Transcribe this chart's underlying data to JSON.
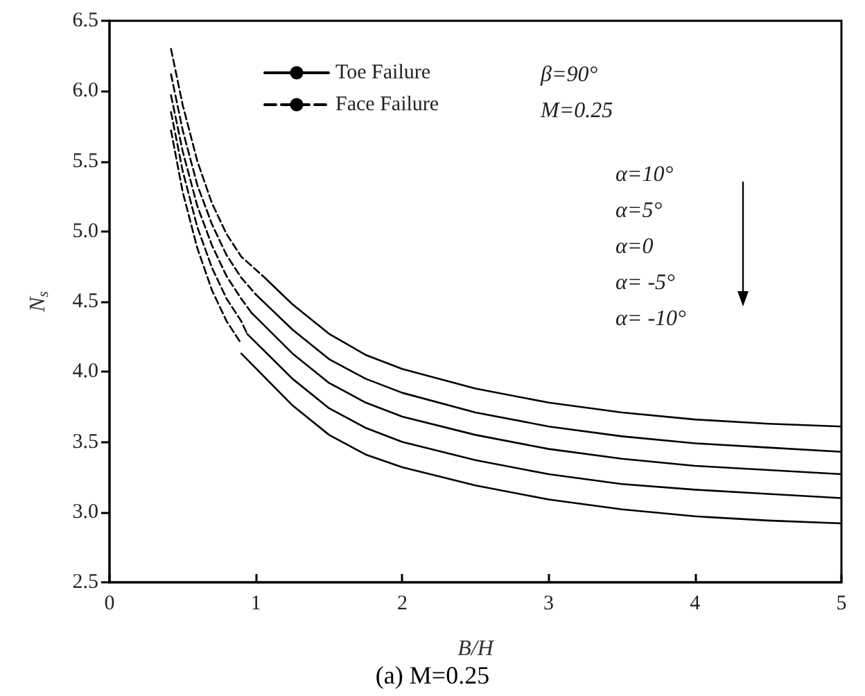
{
  "chart_data": {
    "type": "line",
    "title": "(a) M=0.25",
    "xlabel": "B/H",
    "ylabel": "N$_{s}$",
    "annotations": [
      "β=90°",
      "M=0.25",
      "α=10°",
      "α=5°",
      "α=0",
      "α= -5°",
      "α= -10°"
    ],
    "legend": "top",
    "grid": false,
    "marker": "none",
    "xlim": [
      0,
      5
    ],
    "xticks": [
      0,
      1,
      2,
      3,
      4,
      5
    ],
    "ylim": [
      2.5,
      6.5
    ],
    "yticks": [
      2.5,
      {
        "value": 3,
        "label": "3.0"
      },
      3.5,
      {
        "value": 4,
        "label": "4.0"
      },
      4.5,
      {
        "value": 5,
        "label": "5.0"
      },
      5.5,
      {
        "value": 6,
        "label": "6.0"
      },
      6.5
    ],
    "series": [
      {
        "name": "Toe Failure",
        "color": "#000000",
        "line_style": "solid",
        "x": [
          1.05,
          1.25,
          1.5,
          1.75,
          2,
          2.5,
          3,
          3.5,
          4,
          4.5,
          5
        ],
        "values": [
          4.68,
          4.48,
          4.27,
          4.12,
          4.02,
          3.88,
          3.78,
          3.71,
          3.66,
          3.63,
          3.61
        ]
      },
      {
        "name": "Face Failure",
        "color": "#000000",
        "line_style": "dashed",
        "x": [
          0.42,
          0.5,
          0.6,
          0.7,
          0.8,
          0.9,
          1.05
        ],
        "values": [
          6.3,
          5.9,
          5.5,
          5.2,
          4.98,
          4.82,
          4.68
        ]
      },
      {
        "color": "#000000",
        "line_style": "solid",
        "x": [
          1.0,
          1.25,
          1.5,
          1.75,
          2,
          2.5,
          3,
          3.5,
          4,
          4.5,
          5
        ],
        "values": [
          4.55,
          4.3,
          4.09,
          3.95,
          3.85,
          3.71,
          3.61,
          3.54,
          3.49,
          3.46,
          3.43
        ]
      },
      {
        "color": "#000000",
        "line_style": "dashed",
        "x": [
          0.42,
          0.5,
          0.6,
          0.7,
          0.8,
          0.9,
          1.0
        ],
        "values": [
          6.12,
          5.72,
          5.33,
          5.05,
          4.83,
          4.67,
          4.55
        ]
      },
      {
        "color": "#000000",
        "line_style": "solid",
        "x": [
          0.97,
          1.25,
          1.5,
          1.75,
          2,
          2.5,
          3,
          3.5,
          4,
          4.5,
          5
        ],
        "values": [
          4.42,
          4.13,
          3.92,
          3.78,
          3.68,
          3.55,
          3.45,
          3.38,
          3.33,
          3.3,
          3.27
        ]
      },
      {
        "color": "#000000",
        "line_style": "dashed",
        "x": [
          0.42,
          0.5,
          0.6,
          0.7,
          0.8,
          0.9,
          0.97
        ],
        "values": [
          5.97,
          5.57,
          5.18,
          4.9,
          4.68,
          4.52,
          4.42
        ]
      },
      {
        "color": "#000000",
        "line_style": "solid",
        "x": [
          0.94,
          1.25,
          1.5,
          1.75,
          2,
          2.5,
          3,
          3.5,
          4,
          4.5,
          5
        ],
        "values": [
          4.27,
          3.95,
          3.74,
          3.6,
          3.5,
          3.37,
          3.27,
          3.2,
          3.16,
          3.13,
          3.1
        ]
      },
      {
        "color": "#000000",
        "line_style": "dashed",
        "x": [
          0.42,
          0.5,
          0.6,
          0.7,
          0.8,
          0.9,
          0.94
        ],
        "values": [
          5.85,
          5.43,
          5.03,
          4.74,
          4.52,
          4.36,
          4.27
        ]
      },
      {
        "color": "#000000",
        "line_style": "solid",
        "x": [
          0.9,
          1.25,
          1.5,
          1.75,
          2,
          2.5,
          3,
          3.5,
          4,
          4.5,
          5
        ],
        "values": [
          4.13,
          3.76,
          3.55,
          3.41,
          3.32,
          3.19,
          3.09,
          3.02,
          2.97,
          2.94,
          2.92
        ]
      },
      {
        "color": "#000000",
        "line_style": "dashed",
        "x": [
          0.42,
          0.5,
          0.6,
          0.7,
          0.8,
          0.9
        ],
        "values": [
          5.72,
          5.28,
          4.88,
          4.58,
          4.36,
          4.2
        ]
      }
    ]
  }
}
